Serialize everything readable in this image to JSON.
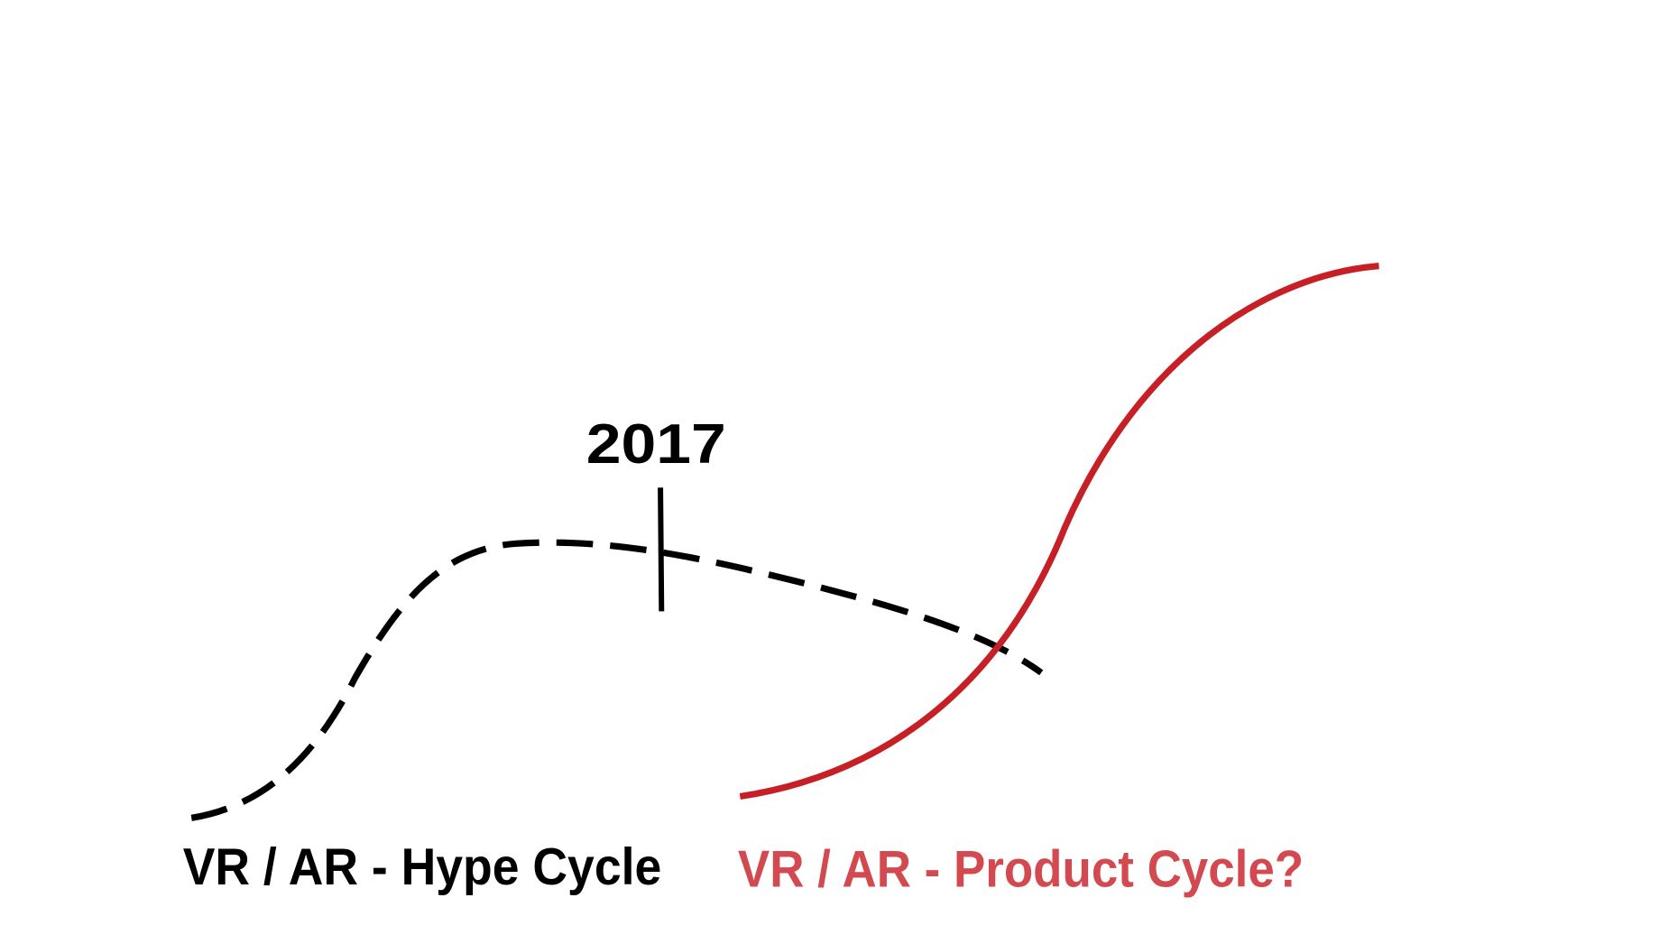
{
  "diagram": {
    "marker_label": "2017",
    "hype_cycle": {
      "label": "VR / AR - Hype Cycle",
      "color": "#000000",
      "line_style": "dashed"
    },
    "product_cycle": {
      "label": "VR / AR - Product Cycle?",
      "color": "#c62026",
      "label_color": "#d24a4f",
      "line_style": "solid"
    }
  }
}
